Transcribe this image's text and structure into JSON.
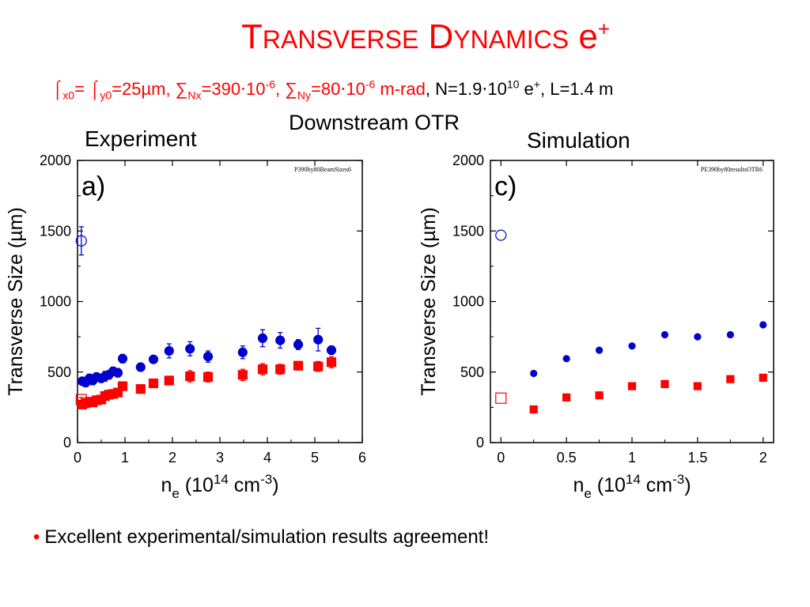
{
  "title": {
    "first_letter": "T",
    "first_rest": "RANSVERSE",
    "second_letter": "D",
    "second_rest": "YNAMICS",
    "particle": "e",
    "charge": "+"
  },
  "params": {
    "p1": "⌠",
    "p1_sub": "x0",
    "p2": "= ⌠",
    "p2_sub": "y0",
    "p3": "=25µm, ∑",
    "p3_sub": "Nx",
    "p4": "=390⋅10",
    "p4_sup": "-6",
    "p5": ", ∑",
    "p5_sub": "Ny",
    "p6": "=80⋅10",
    "p6_sup": "-6",
    "p7": " m-rad",
    "p8": ", N=1.9⋅10",
    "p8_sup": "10",
    "p9": " e",
    "p9_sup": "+",
    "p10": ", L=1.4 m"
  },
  "otr_label": "Downstream OTR",
  "experiment_label": "Experiment",
  "simulation_label": "Simulation",
  "bullet": "Excellent experimental/simulation results agreement!",
  "colors": {
    "blue": "#0000cc",
    "red": "#ff0000",
    "title_red": "#ff0000"
  },
  "chart_data": [
    {
      "type": "scatter",
      "panel_label": "a)",
      "stamp": "P390by80BeamSizes6",
      "xlabel": {
        "base": "n",
        "sub": "e",
        "mid": " (10",
        "sup1": "14",
        "unit": " cm",
        "sup2": "-3",
        "end": ")"
      },
      "ylabel": "Transverse Size (µm)",
      "xlim": [
        0,
        6
      ],
      "ylim": [
        0,
        2000
      ],
      "xticks": [
        "0",
        "1",
        "2",
        "3",
        "4",
        "5",
        "6"
      ],
      "yticks": [
        "0",
        "500",
        "1000",
        "1500",
        "2000"
      ],
      "series": [
        {
          "color": "#0000cc",
          "marker": "circle-filled",
          "points": [
            [
              0.1,
              435,
              25
            ],
            [
              0.17,
              425,
              25
            ],
            [
              0.25,
              455,
              30
            ],
            [
              0.32,
              440,
              30
            ],
            [
              0.4,
              465,
              30
            ],
            [
              0.5,
              455,
              25
            ],
            [
              0.58,
              470,
              35
            ],
            [
              0.66,
              480,
              30
            ],
            [
              0.75,
              505,
              30
            ],
            [
              0.85,
              495,
              30
            ],
            [
              0.95,
              595,
              30
            ],
            [
              1.33,
              535,
              20
            ],
            [
              1.6,
              590,
              25
            ],
            [
              1.93,
              650,
              50
            ],
            [
              2.37,
              665,
              50
            ],
            [
              2.75,
              610,
              40
            ],
            [
              3.48,
              640,
              45
            ],
            [
              3.9,
              740,
              60
            ],
            [
              4.27,
              725,
              55
            ],
            [
              4.65,
              695,
              35
            ],
            [
              5.07,
              730,
              80
            ],
            [
              5.35,
              655,
              30
            ]
          ]
        },
        {
          "color": "#ff0000",
          "marker": "square-filled",
          "points": [
            [
              0.1,
              270,
              20
            ],
            [
              0.17,
              280,
              20
            ],
            [
              0.25,
              290,
              20
            ],
            [
              0.32,
              285,
              20
            ],
            [
              0.4,
              300,
              25
            ],
            [
              0.5,
              305,
              25
            ],
            [
              0.58,
              330,
              25
            ],
            [
              0.66,
              340,
              25
            ],
            [
              0.75,
              345,
              20
            ],
            [
              0.85,
              355,
              20
            ],
            [
              0.95,
              400,
              30
            ],
            [
              1.33,
              380,
              20
            ],
            [
              1.6,
              420,
              25
            ],
            [
              1.93,
              440,
              30
            ],
            [
              2.37,
              470,
              40
            ],
            [
              2.75,
              465,
              35
            ],
            [
              3.48,
              480,
              40
            ],
            [
              3.9,
              520,
              40
            ],
            [
              4.27,
              520,
              35
            ],
            [
              4.65,
              545,
              30
            ],
            [
              5.07,
              540,
              35
            ],
            [
              5.35,
              570,
              40
            ]
          ]
        },
        {
          "color": "#0000cc",
          "marker": "circle-open",
          "points": [
            [
              0.08,
              1430,
              100
            ]
          ]
        },
        {
          "color": "#ff0000",
          "marker": "square-open",
          "points": [
            [
              0.08,
              305,
              15
            ]
          ]
        }
      ]
    },
    {
      "type": "scatter",
      "panel_label": "c)",
      "stamp": "PE390by80resultsOTR6",
      "xlabel": {
        "base": "n",
        "sub": "e",
        "mid": " (10",
        "sup1": "14",
        "unit": " cm",
        "sup2": "-3",
        "end": ")"
      },
      "ylabel": "Transverse Size (µm)",
      "xlim": [
        -0.08,
        2.08
      ],
      "ylim": [
        0,
        2000
      ],
      "xticks": [
        "0",
        "0.5",
        "1",
        "1.5",
        "2"
      ],
      "yticks": [
        "0",
        "500",
        "1000",
        "1500",
        "2000"
      ],
      "series": [
        {
          "color": "#0000cc",
          "marker": "circle-filled",
          "points": [
            [
              0.25,
              490
            ],
            [
              0.5,
              595
            ],
            [
              0.75,
              655
            ],
            [
              1.0,
              685
            ],
            [
              1.25,
              765
            ],
            [
              1.5,
              750
            ],
            [
              1.75,
              765
            ],
            [
              2.0,
              835
            ]
          ]
        },
        {
          "color": "#ff0000",
          "marker": "square-filled",
          "points": [
            [
              0.25,
              235
            ],
            [
              0.5,
              320
            ],
            [
              0.75,
              335
            ],
            [
              1.0,
              400
            ],
            [
              1.25,
              415
            ],
            [
              1.5,
              400
            ],
            [
              1.75,
              450
            ],
            [
              2.0,
              460
            ]
          ]
        },
        {
          "color": "#0000cc",
          "marker": "circle-open",
          "points": [
            [
              0.0,
              1470
            ]
          ]
        },
        {
          "color": "#ff0000",
          "marker": "square-open",
          "points": [
            [
              0.0,
              315
            ]
          ]
        }
      ]
    }
  ]
}
